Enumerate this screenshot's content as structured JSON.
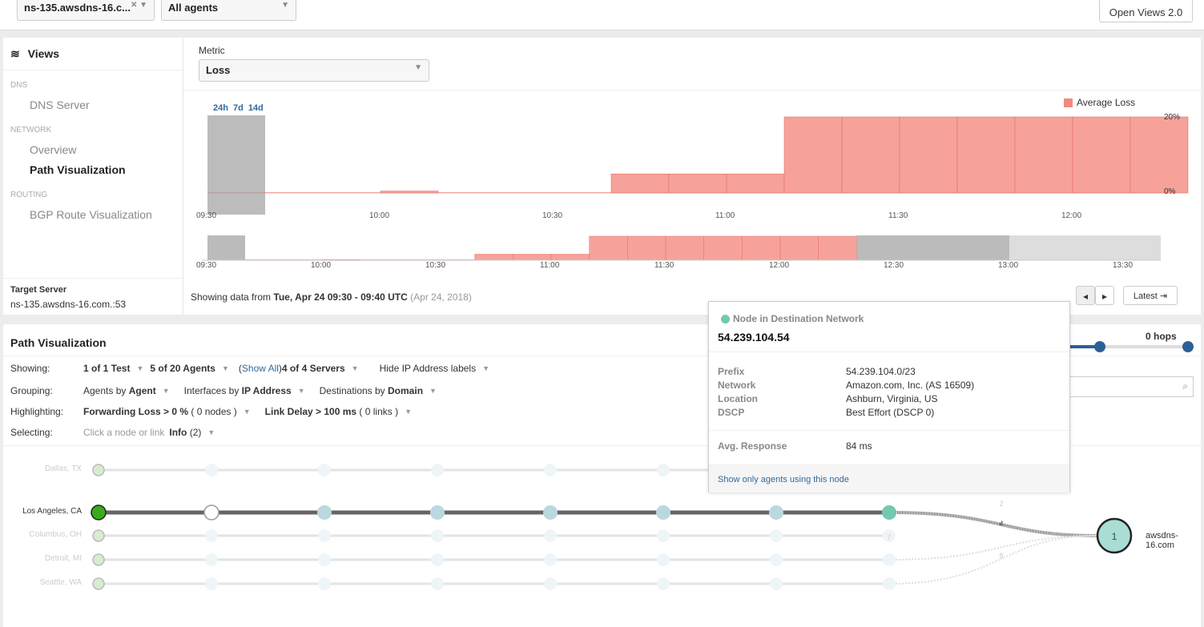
{
  "topbar": {
    "server_filter": "ns-135.awsdns-16.c...",
    "agent_filter": "All agents",
    "open_views": "Open Views 2.0"
  },
  "sidebar": {
    "title": "Views",
    "sections": [
      {
        "label": "DNS",
        "items": [
          "DNS Server"
        ]
      },
      {
        "label": "NETWORK",
        "items": [
          "Overview",
          "Path Visualization"
        ]
      },
      {
        "label": "ROUTING",
        "items": [
          "BGP Route Visualization"
        ]
      }
    ],
    "active": "Path Visualization",
    "target_label": "Target Server",
    "target_value": "ns-135.awsdns-16.com.:53"
  },
  "metric": {
    "label": "Metric",
    "value": "Loss"
  },
  "range_links": [
    "24h",
    "7d",
    "14d"
  ],
  "chart_data": {
    "type": "area",
    "series": [
      {
        "name": "Average Loss",
        "color": "#f4a09a",
        "x": [
          "09:30",
          "09:40",
          "09:50",
          "10:00",
          "10:10",
          "10:20",
          "10:30",
          "10:40",
          "10:50",
          "11:00",
          "11:10",
          "11:20",
          "11:30",
          "11:40",
          "11:50",
          "12:00",
          "12:10"
        ],
        "values": [
          0,
          0,
          0,
          0.5,
          0,
          0,
          0,
          5,
          5,
          5,
          20,
          20,
          20,
          20,
          20,
          20,
          20
        ]
      }
    ],
    "ylim": [
      0,
      20
    ],
    "yticks": [
      "0%",
      "20%"
    ],
    "xticks": [
      "09:30",
      "10:00",
      "10:30",
      "11:00",
      "11:30",
      "12:00"
    ],
    "legend": "top-right",
    "selected_range": [
      "09:30",
      "09:40"
    ],
    "overview_xticks": [
      "09:30",
      "10:00",
      "10:30",
      "11:00",
      "11:30",
      "12:00",
      "12:30",
      "13:00",
      "13:30"
    ]
  },
  "showing": {
    "prefix": "Showing data from",
    "range": "Tue, Apr 24 09:30 - 09:40 UTC",
    "date": "(Apr 24, 2018)",
    "latest": "Latest"
  },
  "pathviz": {
    "title": "Path Visualization",
    "showing": {
      "k": "Showing:",
      "test": "1 of 1 Test",
      "agents": "5 of 20 Agents",
      "show_all": "Show All",
      "servers": "4 of 4 Servers",
      "hide_ip": "Hide IP Address labels"
    },
    "grouping": {
      "k": "Grouping:",
      "a1": "Agents by ",
      "a2": "Agent",
      "i1": "Interfaces by ",
      "i2": "IP Address",
      "d1": "Destinations by ",
      "d2": "Domain"
    },
    "highlighting": {
      "k": "Highlighting:",
      "f": "Forwarding Loss > 0 %",
      "fn": "( 0 nodes )",
      "l": "Link Delay > 100 ms",
      "ln": "( 0 links )"
    },
    "selecting": {
      "k": "Selecting:",
      "hint": "Click a node or link",
      "info": "Info",
      "info_n": "(2)"
    },
    "hops": "0 hops",
    "agents": [
      "Dallas, TX",
      "Los Angeles, CA",
      "Columbus, OH",
      "Detroit, MI",
      "Seattle, WA"
    ],
    "destination": {
      "label": "awsdns-16.com",
      "count": "1"
    },
    "link_labels": [
      "2",
      "4",
      "7",
      "8"
    ]
  },
  "tooltip": {
    "title": "Node in Destination Network",
    "ip": "54.239.104.54",
    "rows": [
      {
        "k": "Prefix",
        "v": "54.239.104.0/23"
      },
      {
        "k": "Network",
        "v": "Amazon.com, Inc. (AS 16509)"
      },
      {
        "k": "Location",
        "v": "Ashburn, Virginia, US"
      },
      {
        "k": "DSCP",
        "v": "Best Effort (DSCP 0)"
      }
    ],
    "avg_k": "Avg. Response",
    "avg_v": "84 ms",
    "link": "Show only agents using this node",
    "color": "#72c9b0"
  }
}
